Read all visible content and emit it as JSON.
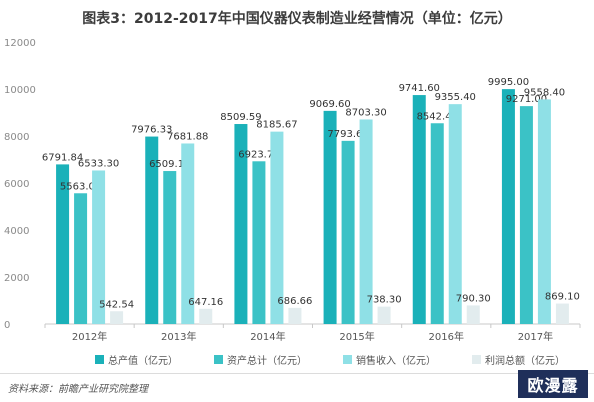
{
  "page": {
    "title": "图表3：2012-2017年中国仪器仪表制造业经营情况（单位：亿元）",
    "source": "资料来源：前瞻产业研究院整理"
  },
  "brand": {
    "logo_text": "欧漫露"
  },
  "colors": {
    "total_output": "#1ab1b9",
    "total_assets": "#3bc2c6",
    "sales_revenue": "#8fe0e6",
    "total_profit": "#e2ecee"
  },
  "chart_data": {
    "type": "bar",
    "categories": [
      "2012年",
      "2013年",
      "2014年",
      "2015年",
      "2016年",
      "2017年"
    ],
    "series": [
      {
        "name": "总产值（亿元）",
        "values": [
          6791.84,
          7976.33,
          8509.59,
          9069.6,
          9741.6,
          9995.0
        ],
        "labels": [
          "6791.84",
          "7976.33",
          "8509.59",
          "9069.60",
          "9741.60",
          "9995.00"
        ]
      },
      {
        "name": "资产总计（亿元）",
        "values": [
          5563.01,
          6509.13,
          6923.78,
          7793.6,
          8542.4,
          9271.0
        ],
        "labels": [
          "5563.01",
          "6509.13",
          "6923.78",
          "7793.60",
          "8542.40",
          "9271.00"
        ]
      },
      {
        "name": "销售收入（亿元）",
        "values": [
          6533.3,
          7681.88,
          8185.67,
          8703.3,
          9355.4,
          9558.4
        ],
        "labels": [
          "6533.30",
          "7681.88",
          "8185.67",
          "8703.30",
          "9355.40",
          "9558.40"
        ]
      },
      {
        "name": "利润总额（亿元）",
        "values": [
          542.54,
          647.16,
          686.66,
          738.3,
          790.3,
          869.1
        ],
        "labels": [
          "542.54",
          "647.16",
          "686.66",
          "738.30",
          "790.30",
          "869.10"
        ]
      }
    ],
    "ylim": [
      0,
      12000
    ],
    "yticks": [
      0,
      2000,
      4000,
      6000,
      8000,
      10000,
      12000
    ],
    "ytick_labels": [
      "0",
      "2000",
      "4000",
      "6000",
      "8000",
      "10000",
      "12000"
    ],
    "grid": false,
    "legend_position": "bottom"
  }
}
